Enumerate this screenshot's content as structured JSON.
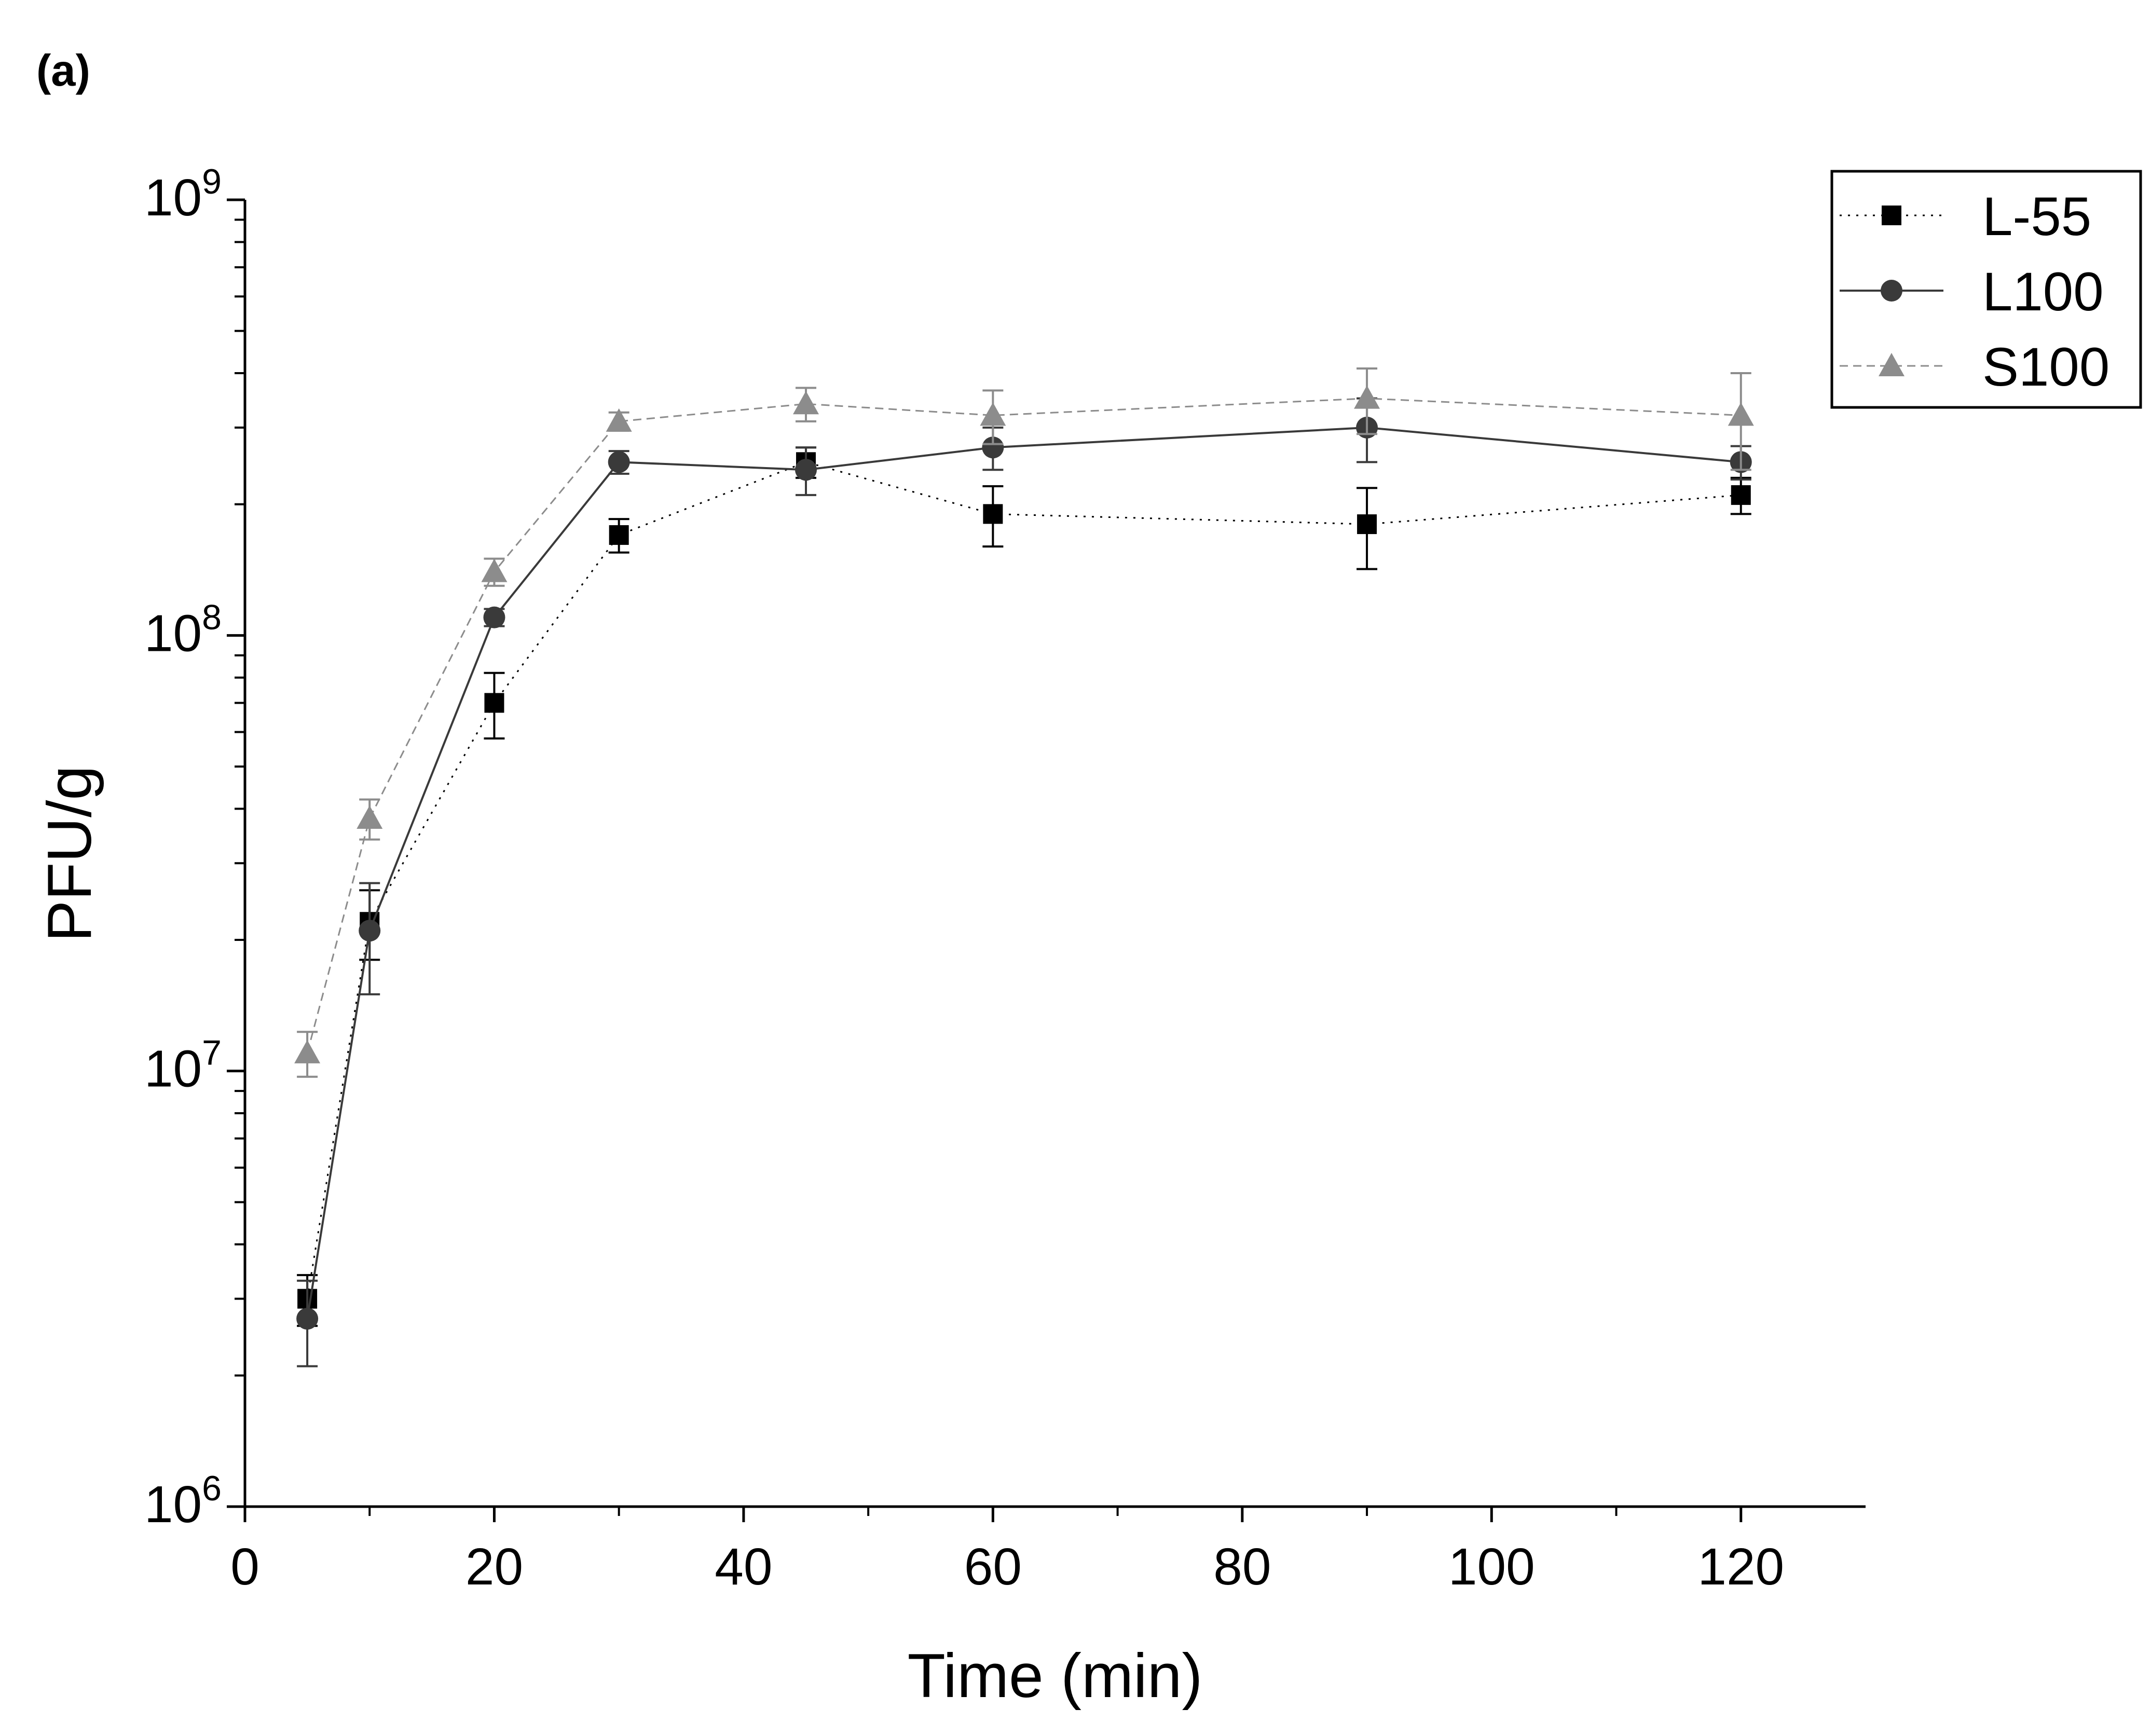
{
  "panel_label": "(a)",
  "chart_data": {
    "type": "line",
    "title": "",
    "xlabel": "Time (min)",
    "ylabel": "PFU/g",
    "xlim": [
      0,
      130
    ],
    "ylim": [
      1000000,
      1000000000
    ],
    "yscale": "log",
    "grid": false,
    "legend_position": "top-right",
    "x_ticks": [
      0,
      20,
      40,
      60,
      80,
      100,
      120
    ],
    "x_tick_labels": [
      "0",
      "20",
      "40",
      "60",
      "80",
      "100",
      "120"
    ],
    "y_ticks": [
      {
        "base": "10",
        "exp": "6",
        "value": 1000000
      },
      {
        "base": "10",
        "exp": "7",
        "value": 10000000
      },
      {
        "base": "10",
        "exp": "8",
        "value": 100000000
      },
      {
        "base": "10",
        "exp": "9",
        "value": 1000000000
      }
    ],
    "x": [
      5,
      10,
      20,
      30,
      45,
      60,
      90,
      120
    ],
    "series": [
      {
        "name": "L-55",
        "marker": "square",
        "line": "dotted",
        "color": "#000000",
        "values": [
          3000000,
          22000000,
          70000000,
          170000000,
          250000000,
          190000000,
          180000000,
          210000000
        ],
        "errors": [
          400000,
          4000000,
          12000000,
          15000000,
          20000000,
          30000000,
          38000000,
          20000000
        ]
      },
      {
        "name": "L100",
        "marker": "circle",
        "line": "solid",
        "color": "#3a3a3a",
        "values": [
          2700000,
          21000000,
          110000000,
          250000000,
          240000000,
          270000000,
          300000000,
          250000000
        ],
        "errors": [
          600000,
          6000000,
          5000000,
          15000000,
          30000000,
          30000000,
          50000000,
          22000000
        ]
      },
      {
        "name": "S100",
        "marker": "triangle",
        "line": "dashed",
        "color": "#8c8c8c",
        "values": [
          11000000,
          38000000,
          140000000,
          310000000,
          340000000,
          320000000,
          350000000,
          320000000
        ],
        "errors": [
          1300000,
          4000000,
          10000000,
          15000000,
          30000000,
          45000000,
          60000000,
          80000000
        ]
      }
    ]
  }
}
